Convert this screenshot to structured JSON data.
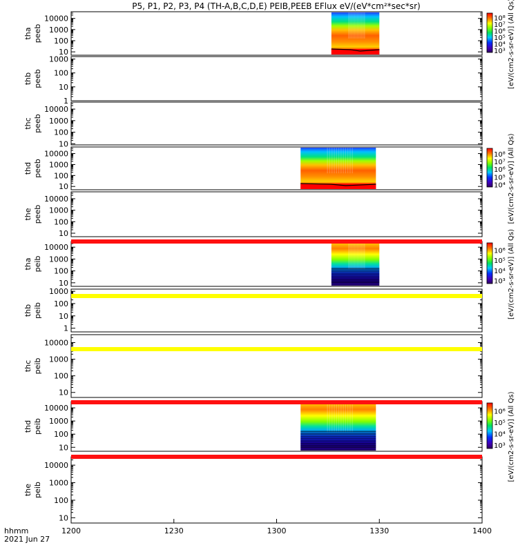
{
  "title": "P5, P1, P2, P3, P4 (TH-A,B,C,D,E) PEIB,PEEB EFlux eV/(eV*cm²*sec*sr)",
  "x_axis": {
    "caption_line1": "hhmm",
    "caption_line2": "2021 Jun 27",
    "ticks": [
      "1200",
      "1230",
      "1300",
      "1330",
      "1400"
    ]
  },
  "colors": {
    "red_band": "#ff1010",
    "yellow_band": "#ffff00",
    "bar_label_color": "#000000"
  },
  "chart_data": [
    {
      "type": "heatmap",
      "name": "tha peeb",
      "ylabel": [
        "tha",
        "peeb"
      ],
      "ylim": [
        5,
        40000
      ],
      "yscale": "log",
      "yticks": [
        "10",
        "100",
        "1000",
        "10000"
      ],
      "data_time": [
        "13:16",
        "13:30"
      ],
      "colorbar": {
        "labels": [
          "10³",
          "10⁴",
          "10⁵",
          "10⁶",
          "10⁷",
          "10⁸"
        ],
        "title": "[eV/(cm2-s-sr-eV)] (All Qs)"
      }
    },
    {
      "type": "heatmap",
      "name": "thb peeb",
      "ylabel": [
        "thb",
        "peeb"
      ],
      "ylim": [
        1,
        1500
      ],
      "yscale": "log",
      "yticks": [
        "1",
        "10",
        "100",
        "1000"
      ],
      "data_time": null
    },
    {
      "type": "heatmap",
      "name": "thc peeb",
      "ylabel": [
        "thc",
        "peeb"
      ],
      "ylim": [
        8,
        40000
      ],
      "yscale": "log",
      "yticks": [
        "10",
        "100",
        "1000",
        "10000"
      ],
      "data_time": null
    },
    {
      "type": "heatmap",
      "name": "thd peeb",
      "ylabel": [
        "thd",
        "peeb"
      ],
      "ylim": [
        5,
        40000
      ],
      "yscale": "log",
      "yticks": [
        "10",
        "100",
        "1000",
        "10000"
      ],
      "data_time": [
        "13:07",
        "13:29"
      ],
      "colorbar": {
        "labels": [
          "10⁴",
          "10⁵",
          "10⁶",
          "10⁷",
          "10⁸"
        ],
        "title": "[eV/(cm2-s-sr-eV)] (All Qs)"
      }
    },
    {
      "type": "heatmap",
      "name": "the peeb",
      "ylabel": [
        "the",
        "peeb"
      ],
      "ylim": [
        5,
        40000
      ],
      "yscale": "log",
      "yticks": [
        "10",
        "100",
        "1000",
        "10000"
      ],
      "data_time": null
    },
    {
      "type": "heatmap",
      "name": "tha peib",
      "ylabel": [
        "tha",
        "peib"
      ],
      "ylim": [
        5,
        30000
      ],
      "yscale": "log",
      "yticks": [
        "10",
        "100",
        "1000",
        "10000"
      ],
      "data_time": [
        "13:16",
        "13:30"
      ],
      "colorbar": {
        "labels": [
          "10³",
          "10⁴",
          "10⁵",
          "10⁶"
        ],
        "title": "[eV/(cm2-s-sr-eV)] (All Qs)"
      }
    },
    {
      "type": "heatmap",
      "name": "thb peib",
      "ylabel": [
        "thb",
        "peib"
      ],
      "ylim": [
        0.5,
        1500
      ],
      "yscale": "log",
      "yticks": [
        "1",
        "10",
        "100",
        "1000"
      ],
      "data_time": null
    },
    {
      "type": "heatmap",
      "name": "thc peib",
      "ylabel": [
        "thc",
        "peib"
      ],
      "ylim": [
        5,
        30000
      ],
      "yscale": "log",
      "yticks": [
        "10",
        "100",
        "1000",
        "10000"
      ],
      "data_time": null
    },
    {
      "type": "heatmap",
      "name": "thd peib",
      "ylabel": [
        "thd",
        "peib"
      ],
      "ylim": [
        5,
        30000
      ],
      "yscale": "log",
      "yticks": [
        "10",
        "100",
        "1000",
        "10000"
      ],
      "data_time": [
        "13:07",
        "13:29"
      ],
      "colorbar": {
        "labels": [
          "10³",
          "10⁴",
          "10⁵",
          "10⁶"
        ],
        "title": "[eV/(cm2-s-sr-eV)] (All Qs)"
      }
    },
    {
      "type": "heatmap",
      "name": "the peib",
      "ylabel": [
        "the",
        "peib"
      ],
      "ylim": [
        5,
        30000
      ],
      "yscale": "log",
      "yticks": [
        "10",
        "100",
        "1000",
        "10000"
      ],
      "data_time": null
    }
  ],
  "status_bars": [
    {
      "after_panel": 5,
      "color": "red"
    },
    {
      "after_panel": 6,
      "color": "yellow"
    },
    {
      "after_panel": 7,
      "color": "yellow"
    },
    {
      "after_panel": 8,
      "color": "red"
    },
    {
      "after_panel": 9,
      "color": "red"
    }
  ]
}
